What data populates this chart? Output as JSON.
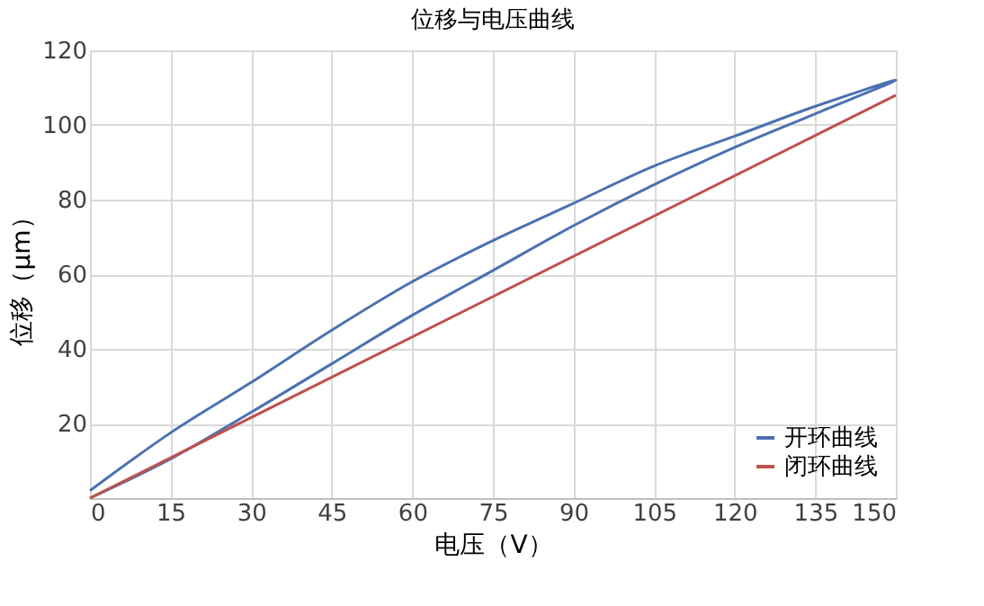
{
  "chart_data": {
    "type": "line",
    "title": "位移与电压曲线",
    "xlabel": "电压（V）",
    "ylabel": "位移（μm）",
    "series": [
      {
        "name": "开环曲线",
        "color": "#4a72b0",
        "x": [
          0,
          15,
          30,
          45,
          60,
          75,
          90,
          105,
          120,
          135,
          150,
          135,
          120,
          105,
          90,
          75,
          60,
          45,
          30,
          15,
          0
        ],
        "values": [
          0,
          10.5,
          23,
          36,
          49,
          61,
          73,
          84,
          94,
          103,
          112,
          105,
          97,
          89,
          79,
          69,
          58,
          45,
          31,
          17.5,
          2
        ]
      },
      {
        "name": "闭环曲线",
        "color": "#c0504d",
        "x": [
          0,
          150
        ],
        "values": [
          0,
          108
        ]
      }
    ],
    "xlim": [
      0,
      150
    ],
    "xticks": [
      0,
      15,
      30,
      45,
      60,
      75,
      90,
      105,
      120,
      135,
      150
    ],
    "ylim": [
      0,
      120
    ],
    "yticks": [
      {
        "value": 0,
        "label": null
      },
      20,
      40,
      60,
      80,
      100,
      120
    ],
    "grid": true,
    "legend": "bottom right",
    "marker": "none",
    "line_style": "solid"
  }
}
